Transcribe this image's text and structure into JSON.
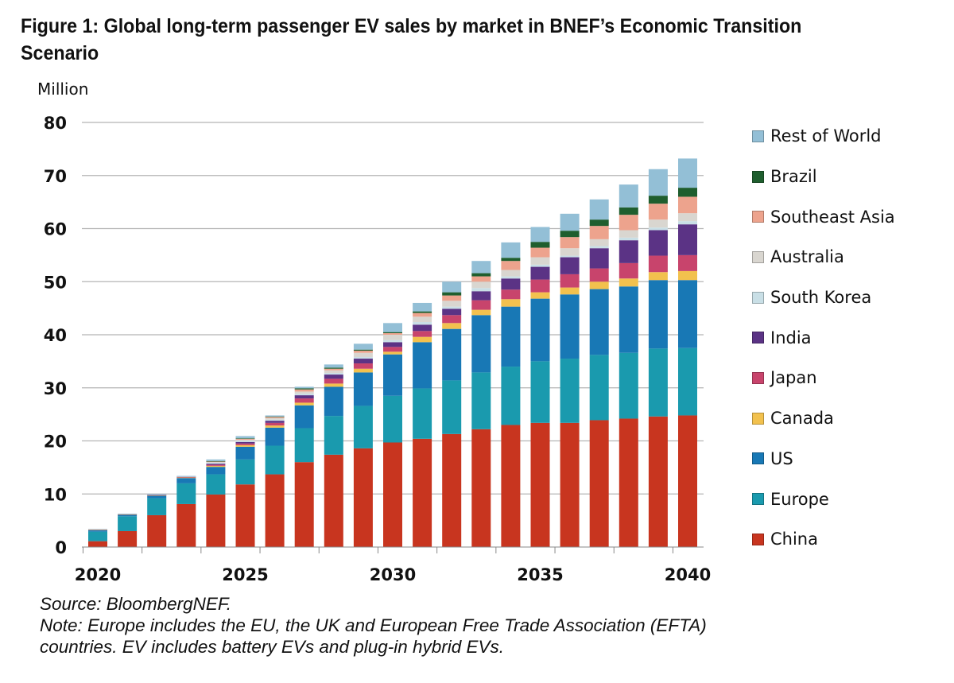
{
  "title": "Figure 1: Global long-term passenger EV sales by market in BNEF’s Economic Transition Scenario",
  "source": "Source: BloombergNEF.",
  "note_line1": "Note: Europe includes the EU, the UK and European Free Trade Association (EFTA)",
  "note_line2": "countries. EV includes battery EVs and plug-in hybrid EVs.",
  "chart_data": {
    "type": "bar",
    "stacked": true,
    "title": "Figure 1: Global long-term passenger EV sales by market in BNEF’s Economic Transition Scenario",
    "xlabel": "",
    "ylabel": "Million",
    "ylim": [
      0,
      80
    ],
    "yticks": [
      0,
      10,
      20,
      30,
      40,
      50,
      60,
      70,
      80
    ],
    "xtick_labels": [
      "2020",
      "2025",
      "2030",
      "2035",
      "2040"
    ],
    "grid": true,
    "legend_position": "right",
    "categories": [
      "2020",
      "2021",
      "2022",
      "2023",
      "2024",
      "2025",
      "2026",
      "2027",
      "2028",
      "2029",
      "2030",
      "2031",
      "2032",
      "2033",
      "2034",
      "2035",
      "2036",
      "2037",
      "2038",
      "2039",
      "2040"
    ],
    "series": [
      {
        "name": "China",
        "color": "#c8351f",
        "values": [
          1.1,
          3.0,
          6.0,
          8.1,
          9.9,
          11.8,
          13.7,
          16.0,
          17.4,
          18.6,
          19.7,
          20.4,
          21.3,
          22.2,
          23.0,
          23.4,
          23.4,
          23.9,
          24.2,
          24.6,
          24.8
        ]
      },
      {
        "name": "Europe",
        "color": "#1a9aae",
        "values": [
          1.8,
          2.8,
          3.2,
          3.9,
          3.8,
          4.7,
          5.4,
          6.4,
          7.3,
          8.0,
          8.8,
          9.5,
          10.1,
          10.7,
          11.0,
          11.6,
          12.1,
          12.3,
          12.4,
          12.8,
          12.7
        ]
      },
      {
        "name": "US",
        "color": "#1878b5",
        "values": [
          0.3,
          0.3,
          0.5,
          1.0,
          1.4,
          2.4,
          3.4,
          4.3,
          5.5,
          6.3,
          7.8,
          8.7,
          9.7,
          10.8,
          11.3,
          11.8,
          12.1,
          12.4,
          12.5,
          12.9,
          12.8
        ]
      },
      {
        "name": "Canada",
        "color": "#f2c14e",
        "values": [
          0.05,
          0.05,
          0.05,
          0.1,
          0.2,
          0.3,
          0.4,
          0.5,
          0.6,
          0.7,
          0.5,
          1.0,
          1.1,
          1.0,
          1.4,
          1.2,
          1.3,
          1.4,
          1.5,
          1.5,
          1.7
        ]
      },
      {
        "name": "Japan",
        "color": "#c8446c",
        "values": [
          0.05,
          0.05,
          0.05,
          0.1,
          0.2,
          0.3,
          0.5,
          0.8,
          0.9,
          1.0,
          0.9,
          1.1,
          1.5,
          1.8,
          1.8,
          2.4,
          2.5,
          2.5,
          2.9,
          3.1,
          3.0
        ]
      },
      {
        "name": "India",
        "color": "#5b3385",
        "values": [
          0,
          0,
          0.05,
          0.05,
          0.2,
          0.3,
          0.4,
          0.6,
          0.8,
          0.9,
          0.9,
          1.2,
          1.2,
          1.7,
          2.1,
          2.4,
          3.2,
          3.8,
          4.3,
          4.8,
          5.8
        ]
      },
      {
        "name": "South Korea",
        "color": "#c9dfe6",
        "values": [
          0.05,
          0.05,
          0.05,
          0.05,
          0.2,
          0.2,
          0.2,
          0.3,
          0.3,
          0.3,
          0.4,
          0.5,
          0.4,
          0.6,
          0.4,
          0.4,
          0.3,
          0.4,
          0.5,
          0.5,
          0.6
        ]
      },
      {
        "name": "Australia",
        "color": "#d9d6d0",
        "values": [
          0,
          0,
          0,
          0,
          0.1,
          0.2,
          0.3,
          0.4,
          0.5,
          0.8,
          1.0,
          1.0,
          1.1,
          1.2,
          1.2,
          1.4,
          1.4,
          1.3,
          1.4,
          1.5,
          1.5
        ]
      },
      {
        "name": "Southeast Asia",
        "color": "#eda38d",
        "values": [
          0,
          0,
          0,
          0,
          0.1,
          0.2,
          0.2,
          0.4,
          0.3,
          0.4,
          0.3,
          0.7,
          1.0,
          1.0,
          1.7,
          1.8,
          2.1,
          2.5,
          2.9,
          3.0,
          3.1
        ]
      },
      {
        "name": "Brazil",
        "color": "#1f5e2e",
        "values": [
          0,
          0,
          0,
          0,
          0.1,
          0.1,
          0.1,
          0.2,
          0.2,
          0.2,
          0.2,
          0.3,
          0.6,
          0.6,
          0.6,
          1.1,
          1.2,
          1.2,
          1.4,
          1.5,
          1.7
        ]
      },
      {
        "name": "Rest of World",
        "color": "#93bfd6",
        "values": [
          0.05,
          0.05,
          0.1,
          0.1,
          0.3,
          0.4,
          0.2,
          0.3,
          0.6,
          1.1,
          1.7,
          1.6,
          2.0,
          2.3,
          2.9,
          2.8,
          3.2,
          3.8,
          4.3,
          5.0,
          5.5
        ]
      }
    ],
    "legend": [
      "Rest of World",
      "Brazil",
      "Southeast Asia",
      "Australia",
      "South Korea",
      "India",
      "Japan",
      "Canada",
      "US",
      "Europe",
      "China"
    ]
  }
}
